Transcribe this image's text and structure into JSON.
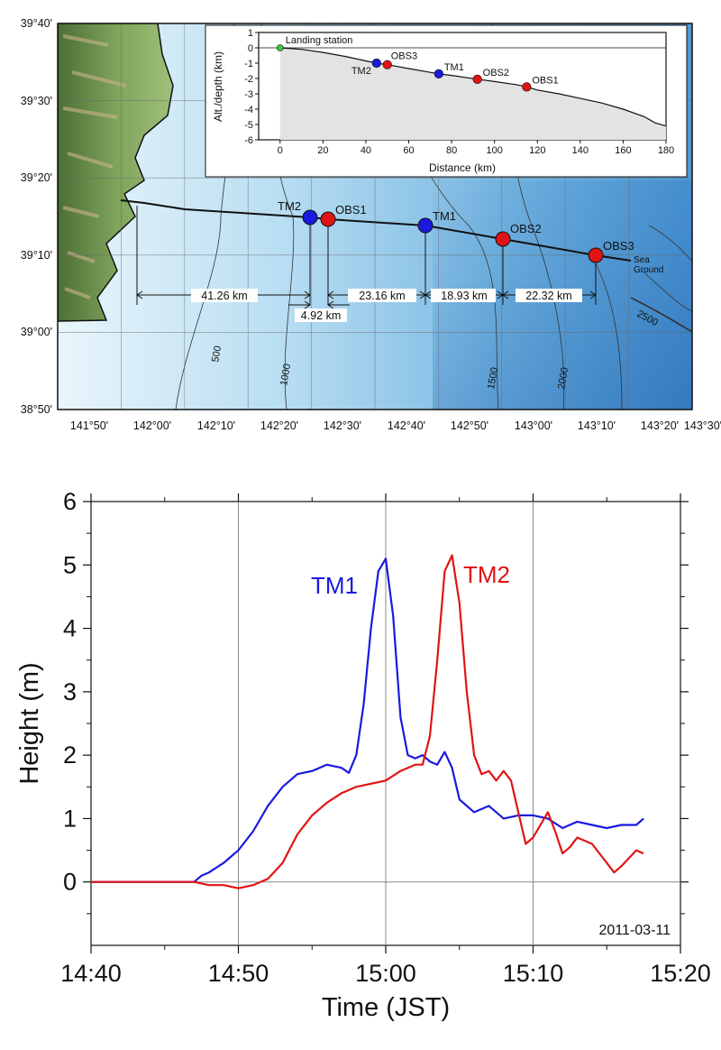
{
  "map": {
    "lat_labels": [
      "39°40'",
      "39°30'",
      "39°20'",
      "39°10'",
      "39°00'",
      "38°50'"
    ],
    "lon_labels": [
      "141°50'",
      "142°00'",
      "142°10'",
      "142°20'",
      "142°30'",
      "142°40'",
      "142°50'",
      "143°00'",
      "143°10'",
      "143°20'",
      "143°30'"
    ],
    "stations": [
      {
        "name": "TM2",
        "type": "tsunami-meter",
        "color": "#1a1adf"
      },
      {
        "name": "OBS1",
        "type": "seismometer",
        "color": "#e01414"
      },
      {
        "name": "TM1",
        "type": "tsunami-meter",
        "color": "#1a1adf"
      },
      {
        "name": "OBS2",
        "type": "seismometer",
        "color": "#e01414"
      },
      {
        "name": "OBS3",
        "type": "seismometer",
        "color": "#e01414"
      }
    ],
    "sea_ground_label": "Sea\nGround",
    "contour_labels": [
      "500",
      "1000",
      "1500",
      "2000",
      "2500"
    ],
    "distances": [
      "41.26 km",
      "4.92 km",
      "23.16 km",
      "18.93 km",
      "22.32 km"
    ],
    "inset": {
      "xlabel": "Distance (km)",
      "ylabel": "Alt./depth (km)",
      "x_ticks": [
        "0",
        "20",
        "40",
        "60",
        "80",
        "100",
        "120",
        "140",
        "160",
        "180"
      ],
      "y_ticks": [
        "1",
        "0",
        "-1",
        "-2",
        "-3",
        "-4",
        "-5",
        "-6"
      ],
      "xlim": [
        -10,
        180
      ],
      "ylim": [
        -6,
        1
      ],
      "landing_label": "Landing station",
      "profile": [
        [
          0,
          0
        ],
        [
          10,
          -0.1
        ],
        [
          20,
          -0.3
        ],
        [
          30,
          -0.55
        ],
        [
          40,
          -0.85
        ],
        [
          45,
          -1.0
        ],
        [
          50,
          -1.1
        ],
        [
          60,
          -1.35
        ],
        [
          70,
          -1.6
        ],
        [
          74,
          -1.7
        ],
        [
          80,
          -1.8
        ],
        [
          92,
          -2.05
        ],
        [
          100,
          -2.2
        ],
        [
          110,
          -2.4
        ],
        [
          115,
          -2.55
        ],
        [
          120,
          -2.75
        ],
        [
          130,
          -3.0
        ],
        [
          140,
          -3.3
        ],
        [
          150,
          -3.6
        ],
        [
          160,
          -4.0
        ],
        [
          170,
          -4.5
        ],
        [
          175,
          -4.9
        ],
        [
          180,
          -5.1
        ]
      ],
      "points": [
        {
          "name": "Landing station",
          "x": 0,
          "y": 0,
          "color": "#3cc83c"
        },
        {
          "name": "TM2",
          "x": 45,
          "y": -1.0,
          "color": "#1a1adf"
        },
        {
          "name": "OBS3",
          "x": 50,
          "y": -1.1,
          "color": "#e01414"
        },
        {
          "name": "TM1",
          "x": 74,
          "y": -1.7,
          "color": "#1a1adf"
        },
        {
          "name": "OBS2",
          "x": 92,
          "y": -2.05,
          "color": "#e01414"
        },
        {
          "name": "OBS1",
          "x": 115,
          "y": -2.55,
          "color": "#e01414"
        }
      ]
    }
  },
  "chart_data": {
    "type": "line",
    "xlabel": "Time (JST)",
    "ylabel": "Height (m)",
    "date_label": "2011-03-11",
    "x_ticks": [
      "14:40",
      "14:50",
      "15:00",
      "15:10",
      "15:20"
    ],
    "y_ticks": [
      "0",
      "1",
      "2",
      "3",
      "4",
      "5",
      "6"
    ],
    "xlim": [
      "14:40",
      "15:20"
    ],
    "ylim": [
      -1,
      6
    ],
    "grid": true,
    "series": [
      {
        "name": "TM1",
        "color": "#1a1adf",
        "x": [
          "14:40",
          "14:44",
          "14:47",
          "14:47.5",
          "14:48",
          "14:49",
          "14:50",
          "14:51",
          "14:52",
          "14:53",
          "14:54",
          "14:55",
          "14:56",
          "14:57",
          "14:57.5",
          "14:58",
          "14:58.5",
          "14:59",
          "14:59.5",
          "15:00",
          "15:00.5",
          "15:01",
          "15:01.5",
          "15:02",
          "15:02.5",
          "15:03",
          "15:03.5",
          "15:04",
          "15:04.5",
          "15:05",
          "15:06",
          "15:07",
          "15:08",
          "15:09",
          "15:10",
          "15:11",
          "15:12",
          "15:13",
          "15:14",
          "15:15",
          "15:16",
          "15:17",
          "15:17.5"
        ],
        "values": [
          0,
          0,
          0,
          0.1,
          0.15,
          0.3,
          0.5,
          0.8,
          1.2,
          1.5,
          1.7,
          1.75,
          1.85,
          1.8,
          1.72,
          2.0,
          2.8,
          4.0,
          4.9,
          5.1,
          4.2,
          2.6,
          2.0,
          1.95,
          2.0,
          1.9,
          1.85,
          2.05,
          1.8,
          1.3,
          1.1,
          1.2,
          1.0,
          1.05,
          1.05,
          1.0,
          0.85,
          0.95,
          0.9,
          0.85,
          0.9,
          0.9,
          1.0
        ]
      },
      {
        "name": "TM2",
        "color": "#e01414",
        "x": [
          "14:40",
          "14:44",
          "14:47",
          "14:48",
          "14:49",
          "14:50",
          "14:51",
          "14:52",
          "14:53",
          "14:54",
          "14:55",
          "14:56",
          "14:57",
          "14:58",
          "14:59",
          "15:00",
          "15:01",
          "15:02",
          "15:02.5",
          "15:03",
          "15:03.5",
          "15:04",
          "15:04.5",
          "15:05",
          "15:05.5",
          "15:06",
          "15:06.5",
          "15:07",
          "15:07.5",
          "15:08",
          "15:08.5",
          "15:09",
          "15:09.5",
          "15:10",
          "15:11",
          "15:11.5",
          "15:12",
          "15:12.5",
          "15:13",
          "15:13.5",
          "15:14",
          "15:15",
          "15:15.5",
          "15:16",
          "15:17",
          "15:17.5"
        ],
        "values": [
          0,
          0,
          0,
          -0.05,
          -0.05,
          -0.1,
          -0.05,
          0.05,
          0.3,
          0.75,
          1.05,
          1.25,
          1.4,
          1.5,
          1.55,
          1.6,
          1.75,
          1.85,
          1.85,
          2.3,
          3.5,
          4.9,
          5.15,
          4.4,
          3.0,
          2.0,
          1.7,
          1.75,
          1.6,
          1.75,
          1.6,
          1.1,
          0.6,
          0.7,
          1.1,
          0.8,
          0.45,
          0.55,
          0.7,
          0.65,
          0.6,
          0.3,
          0.15,
          0.25,
          0.5,
          0.45
        ]
      }
    ]
  }
}
